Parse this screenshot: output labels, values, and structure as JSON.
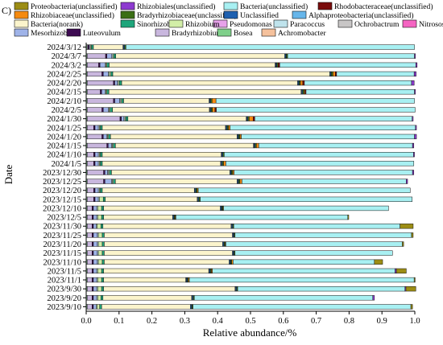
{
  "panel_label": "C)",
  "chart_data": {
    "type": "bar",
    "orientation": "horizontal",
    "stacked": true,
    "xlabel": "Relative abundance/%",
    "ylabel": "Date",
    "xlim": [
      0,
      1
    ],
    "xticks": [
      "0.0",
      "0.1",
      "0.2",
      "0.3",
      "0.4",
      "0.5",
      "0.6",
      "0.7",
      "0.8",
      "0.9",
      "1.0"
    ],
    "grid": false,
    "legend_position": "top",
    "categories": [
      "2024/3/12",
      "2024/3/7",
      "2024/3/2",
      "2024/2/25",
      "2024/2/20",
      "2024/2/15",
      "2024/2/10",
      "2024/2/5",
      "2024/1/30",
      "2024/1/25",
      "2024/1/20",
      "2024/1/15",
      "2024/1/10",
      "2024/1/5",
      "2023/12/30",
      "2023/12/25",
      "2023/12/20",
      "2023/12/15",
      "2023/12/10",
      "2023/12/5",
      "2023/11/30",
      "2023/11/25",
      "2023/11/20",
      "2023/11/15",
      "2023/11/10",
      "2023/11/5",
      "2023/11/1",
      "2023/9/30",
      "2023/9/20",
      "2023/9/10"
    ],
    "series": [
      {
        "name": "Proteobacteria(unclassified)",
        "color": "#9c8d14",
        "values": [
          0,
          0,
          0,
          0,
          0,
          0,
          0,
          0,
          0,
          0,
          0,
          0,
          0,
          0,
          0,
          0,
          0,
          0,
          0,
          0.003,
          0.04,
          0.005,
          0.004,
          0,
          0.025,
          0.03,
          0.003,
          0.03,
          0,
          0.005
        ]
      },
      {
        "name": "Rhizobiales(unclassified)",
        "color": "#8d3ad0",
        "values": [
          0,
          0.003,
          0.004,
          0.006,
          0.008,
          0.003,
          0,
          0,
          0.003,
          0.003,
          0.006,
          0.004,
          0.003,
          0,
          0.004,
          0.004,
          0,
          0,
          0,
          0,
          0,
          0,
          0,
          0,
          0,
          0.004,
          0,
          0.003,
          0.005,
          0
        ]
      },
      {
        "name": "Bacteria(unclassified)",
        "color": "#a8f0f2",
        "values": [
          0.878,
          0.386,
          0.414,
          0.236,
          0.326,
          0.33,
          0.604,
          0.605,
          0.479,
          0.564,
          0.527,
          0.468,
          0.576,
          0.572,
          0.543,
          0.5,
          0.645,
          0.645,
          0.502,
          0.523,
          0.506,
          0.537,
          0.537,
          0.479,
          0.43,
          0.556,
          0.684,
          0.509,
          0.543,
          0.663
        ]
      },
      {
        "name": "Rhodobacteraceae(unclassified)",
        "color": "#7a0c0c",
        "values": [
          0,
          0,
          0.005,
          0.004,
          0.005,
          0.003,
          0,
          0.004,
          0.005,
          0,
          0,
          0,
          0,
          0,
          0,
          0,
          0,
          0,
          0,
          0,
          0,
          0,
          0,
          0,
          0,
          0,
          0,
          0,
          0,
          0
        ]
      },
      {
        "name": "Rhizobiaceae(unclassified)",
        "color": "#f58a10",
        "values": [
          0,
          0,
          0,
          0.007,
          0.007,
          0.003,
          0.012,
          0.008,
          0.012,
          0.005,
          0.004,
          0.007,
          0,
          0.007,
          0.004,
          0.006,
          0.003,
          0,
          0.002,
          0.002,
          0,
          0,
          0.002,
          0,
          0.004,
          0.003,
          0.003,
          0,
          0,
          0
        ]
      },
      {
        "name": "Bradyrhizobiaceae(unclassified)",
        "color": "#3a6e14",
        "values": [
          0.004,
          0.004,
          0.004,
          0.005,
          0.004,
          0.004,
          0.004,
          0.004,
          0.004,
          0.004,
          0.004,
          0.004,
          0.004,
          0.004,
          0.004,
          0.004,
          0.004,
          0.004,
          0.003,
          0.003,
          0.003,
          0.003,
          0.003,
          0.003,
          0.003,
          0.003,
          0.003,
          0.003,
          0.003,
          0.003
        ]
      },
      {
        "name": "Unclassified",
        "color": "#1e60b0",
        "values": [
          0.003,
          0.003,
          0.003,
          0.003,
          0.003,
          0.003,
          0.003,
          0.003,
          0.003,
          0.003,
          0.003,
          0.003,
          0.003,
          0.003,
          0.003,
          0.003,
          0.003,
          0.003,
          0.003,
          0.003,
          0.003,
          0.003,
          0.003,
          0.003,
          0.003,
          0.003,
          0.003,
          0.003,
          0.003,
          0.003
        ]
      },
      {
        "name": "Alphaproteobacteria(unclassified)",
        "color": "#67b6ea",
        "values": [
          0.002,
          0.002,
          0.002,
          0.002,
          0.002,
          0.002,
          0.002,
          0.002,
          0.002,
          0.002,
          0.002,
          0.002,
          0.002,
          0.002,
          0.002,
          0.002,
          0.002,
          0.002,
          0.002,
          0.002,
          0.002,
          0.002,
          0.002,
          0.002,
          0.002,
          0.002,
          0.002,
          0.002,
          0.002,
          0.002
        ]
      },
      {
        "name": "Bacteria(norank)",
        "color": "#fbf4cc",
        "values": [
          0.09,
          0.514,
          0.505,
          0.66,
          0.535,
          0.585,
          0.26,
          0.295,
          0.36,
          0.375,
          0.385,
          0.42,
          0.362,
          0.36,
          0.36,
          0.37,
          0.28,
          0.28,
          0.355,
          0.21,
          0.39,
          0.39,
          0.36,
          0.39,
          0.38,
          0.32,
          0.25,
          0.4,
          0.27,
          0.27
        ]
      },
      {
        "name": "Sinorhizobium",
        "color": "#1ea57b",
        "values": [
          0.006,
          0.006,
          0.007,
          0.006,
          0.007,
          0.006,
          0.006,
          0.007,
          0.006,
          0.006,
          0.006,
          0.006,
          0.006,
          0.006,
          0.006,
          0.006,
          0.006,
          0.006,
          0.006,
          0.006,
          0.006,
          0.006,
          0.006,
          0.006,
          0.006,
          0.006,
          0.006,
          0.006,
          0.006,
          0.006
        ]
      },
      {
        "name": "Rhizobium",
        "color": "#d2eea7",
        "values": [
          0.003,
          0.003,
          0.003,
          0.005,
          0.003,
          0.003,
          0.003,
          0.003,
          0.003,
          0.003,
          0.003,
          0.003,
          0.003,
          0.003,
          0.003,
          0.003,
          0.003,
          0.012,
          0.012,
          0.012,
          0.012,
          0.012,
          0.012,
          0.012,
          0.012,
          0.012,
          0.012,
          0.012,
          0.01,
          0.008
        ]
      },
      {
        "name": "Pseudomonas",
        "color": "#e7a2ea",
        "values": [
          0,
          0,
          0,
          0,
          0,
          0,
          0,
          0,
          0,
          0,
          0,
          0,
          0,
          0,
          0,
          0,
          0,
          0,
          0,
          0,
          0,
          0,
          0,
          0,
          0,
          0,
          0,
          0,
          0,
          0
        ]
      },
      {
        "name": "Paracoccus",
        "color": "#bfe3ec",
        "values": [
          0.003,
          0.003,
          0.003,
          0.003,
          0.003,
          0.003,
          0.003,
          0.003,
          0.003,
          0.003,
          0.003,
          0.003,
          0.003,
          0.003,
          0.003,
          0.003,
          0.003,
          0.003,
          0.003,
          0.003,
          0.003,
          0.003,
          0.003,
          0.003,
          0.003,
          0.003,
          0.003,
          0.003,
          0.003,
          0.003
        ]
      },
      {
        "name": "Ochrobactrum",
        "color": "#c8c6c6",
        "values": [
          0,
          0,
          0,
          0,
          0,
          0,
          0,
          0,
          0,
          0,
          0,
          0,
          0,
          0,
          0,
          0,
          0,
          0,
          0,
          0,
          0,
          0,
          0,
          0,
          0,
          0,
          0,
          0,
          0,
          0
        ]
      },
      {
        "name": "Nitrosospira",
        "color": "#f564c2",
        "values": [
          0,
          0,
          0,
          0,
          0,
          0,
          0,
          0,
          0,
          0,
          0,
          0,
          0,
          0,
          0,
          0,
          0,
          0,
          0,
          0,
          0,
          0,
          0,
          0,
          0,
          0,
          0,
          0,
          0,
          0
        ]
      },
      {
        "name": "Mesorhizobium",
        "color": "#9fb3e8",
        "values": [
          0,
          0.015,
          0.015,
          0.015,
          0.008,
          0.01,
          0.015,
          0.015,
          0.008,
          0.01,
          0.01,
          0.01,
          0.01,
          0.01,
          0.008,
          0.02,
          0.01,
          0.01,
          0.01,
          0.01,
          0.008,
          0.012,
          0.012,
          0.012,
          0.012,
          0.01,
          0.01,
          0.01,
          0.01,
          0.008
        ]
      },
      {
        "name": "Luteovulum",
        "color": "#3d0a52",
        "values": [
          0.004,
          0.004,
          0.004,
          0.004,
          0.004,
          0.004,
          0.004,
          0.004,
          0.004,
          0.004,
          0.004,
          0.004,
          0.004,
          0.004,
          0.004,
          0.004,
          0.004,
          0.004,
          0.004,
          0.004,
          0.004,
          0.004,
          0.004,
          0.004,
          0.004,
          0.004,
          0.004,
          0.004,
          0.004,
          0.004
        ]
      },
      {
        "name": "Bradyrhizobium",
        "color": "#c9b7de",
        "values": [
          0.003,
          0.056,
          0.035,
          0.045,
          0.08,
          0.04,
          0.08,
          0.045,
          0.1,
          0.02,
          0.045,
          0.06,
          0.02,
          0.02,
          0.05,
          0.05,
          0.02,
          0.02,
          0.015,
          0.015,
          0.015,
          0.015,
          0.015,
          0.015,
          0.015,
          0.015,
          0.015,
          0.015,
          0.015,
          0.015
        ]
      },
      {
        "name": "Bosea",
        "color": "#7fd08a",
        "values": [
          0.003,
          0.003,
          0.003,
          0.003,
          0.003,
          0.003,
          0.003,
          0.003,
          0.003,
          0.003,
          0.003,
          0.003,
          0.003,
          0.003,
          0.003,
          0.003,
          0.003,
          0.003,
          0.003,
          0.003,
          0.003,
          0.003,
          0.003,
          0.003,
          0.003,
          0.003,
          0.003,
          0.003,
          0.003,
          0.003
        ]
      },
      {
        "name": "Achromobacter",
        "color": "#f5c19c",
        "values": [
          0,
          0,
          0,
          0,
          0,
          0,
          0,
          0,
          0,
          0,
          0,
          0,
          0,
          0,
          0,
          0,
          0,
          0,
          0,
          0,
          0,
          0,
          0,
          0,
          0,
          0,
          0,
          0,
          0,
          0
        ]
      }
    ],
    "stack_order_left_to_right": [
      "Achromobacter",
      "Bosea",
      "Bradyrhizobium",
      "Luteovulum",
      "Mesorhizobium",
      "Nitrosospira",
      "Ochrobactrum",
      "Paracoccus",
      "Pseudomonas",
      "Rhizobium",
      "Sinorhizobium",
      "Bacteria(norank)",
      "Alphaproteobacteria(unclassified)",
      "Unclassified",
      "Bradyrhizobiaceae(unclassified)",
      "Rhizobiaceae(unclassified)",
      "Rhodobacteraceae(unclassified)",
      "Bacteria(unclassified)",
      "Rhizobiales(unclassified)",
      "Proteobacteria(unclassified)"
    ]
  }
}
